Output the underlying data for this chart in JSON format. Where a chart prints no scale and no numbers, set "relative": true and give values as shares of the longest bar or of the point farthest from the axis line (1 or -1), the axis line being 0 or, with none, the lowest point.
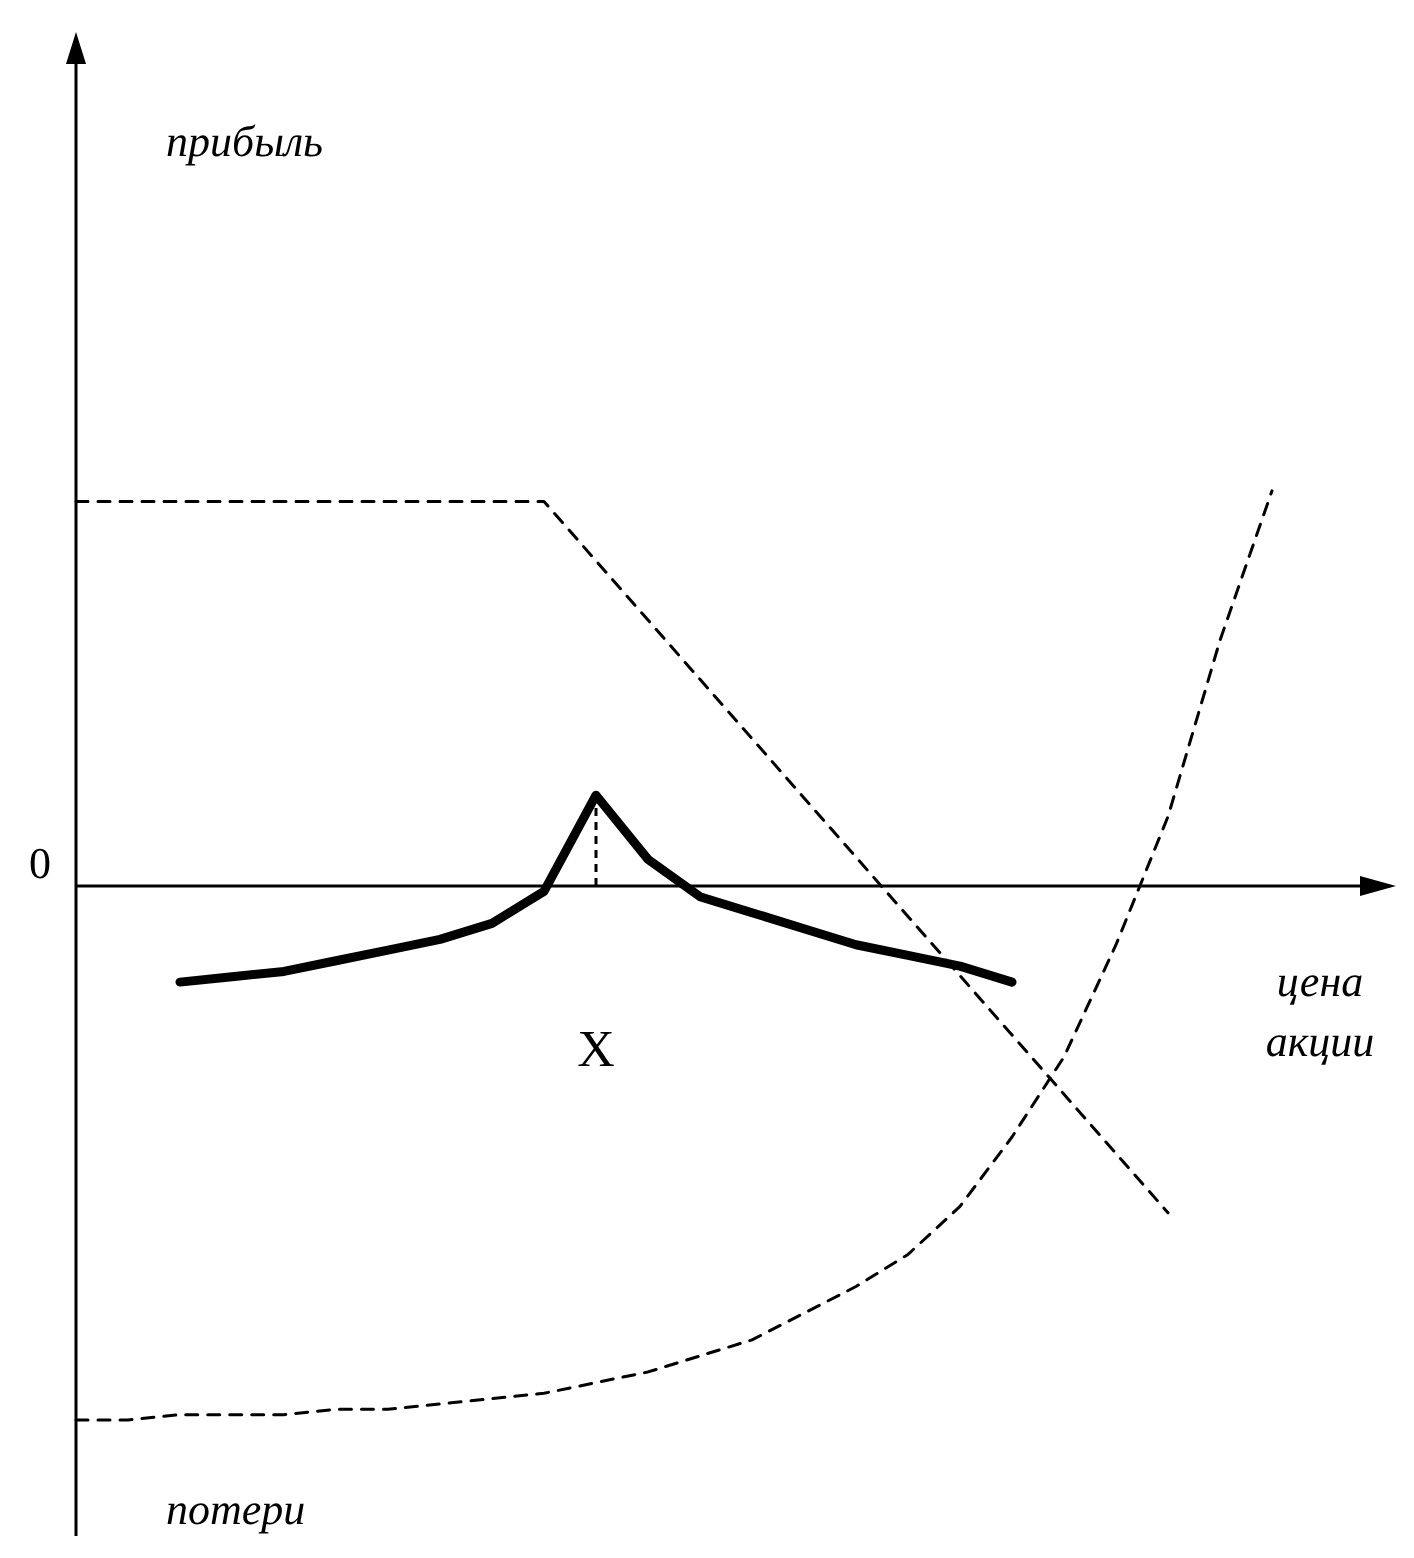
{
  "chart_data": {
    "type": "line",
    "relative": true,
    "xlabel": "цена акции",
    "annotations": [
      "0",
      "прибыль",
      "потери",
      "X"
    ],
    "categories": [
      null,
      null,
      null,
      null,
      null,
      null,
      null,
      null,
      null,
      null,
      null,
      null,
      null,
      null,
      null,
      null,
      null,
      null,
      null,
      null,
      null,
      null,
      null,
      null
    ],
    "series": [
      {
        "color": "#000000",
        "line_style": "dashed",
        "values": [
          0.72,
          0.72,
          0.72,
          0.72,
          0.72,
          0.72,
          0.72,
          0.72,
          0.72,
          0.72,
          0.609,
          0.498,
          0.387,
          0.276,
          0.165,
          0.054,
          -0.057,
          -0.168,
          -0.279,
          -0.39,
          -0.501,
          -0.612,
          null,
          null
        ]
      },
      {
        "color": "#000000",
        "line_style": "dashed",
        "values": [
          -1.0,
          -1.0,
          -0.99,
          -0.99,
          -0.99,
          -0.98,
          -0.98,
          -0.97,
          -0.96,
          -0.95,
          -0.93,
          -0.91,
          -0.88,
          -0.85,
          -0.8,
          -0.75,
          -0.69,
          -0.6,
          -0.47,
          -0.32,
          -0.11,
          0.13,
          0.46,
          0.74
        ]
      },
      {
        "color": "#000000",
        "line_style": "solid",
        "values": [
          null,
          null,
          -0.18,
          -0.17,
          -0.16,
          -0.14,
          -0.12,
          -0.1,
          -0.07,
          -0.01,
          0.17,
          0.05,
          -0.02,
          -0.05,
          -0.08,
          -0.11,
          -0.13,
          -0.15,
          -0.18,
          null,
          null,
          null,
          null,
          null
        ]
      }
    ]
  }
}
